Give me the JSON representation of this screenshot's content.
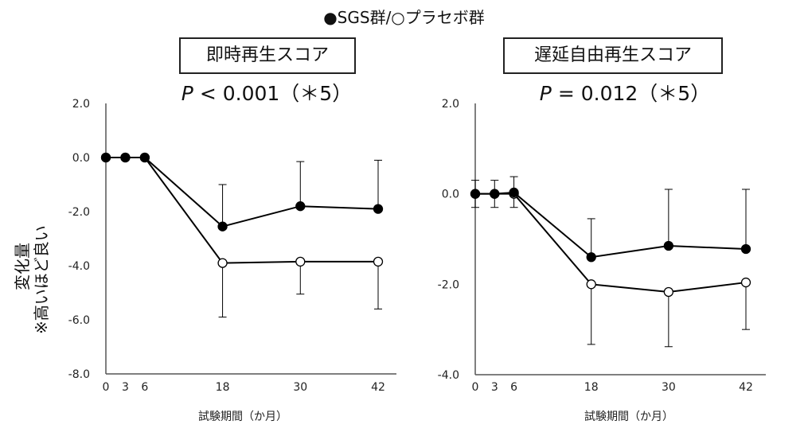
{
  "legend_title": "●SGS群/○プラセボ群",
  "y_label_line1": "変化量",
  "y_label_line2": "※高いほど良い",
  "colors": {
    "axis": "#555555",
    "line": "#000000",
    "marker_fill_sgs": "#000000",
    "marker_fill_placebo": "#ffffff"
  },
  "chart_data": [
    {
      "type": "line",
      "title": "即時再生スコア",
      "p_prefix": "P",
      "p_value_text": "< 0.001（＊5）",
      "xlabel": "試験期間（か月）",
      "x": [
        0,
        3,
        6,
        18,
        30,
        42
      ],
      "x_ticks": [
        "0",
        "3",
        "6",
        "18",
        "30",
        "42"
      ],
      "ylim": [
        -8.0,
        2.0
      ],
      "y_ticks": [
        "2.0",
        "0.0",
        "-2.0",
        "-4.0",
        "-6.0",
        "-8.0"
      ],
      "series": [
        {
          "name": "SGS群",
          "marker": "filled-circle",
          "values": [
            0,
            0,
            0,
            -2.55,
            -1.8,
            -1.9
          ],
          "error_upper": [
            0,
            0,
            0,
            -1.0,
            -0.15,
            -0.1
          ]
        },
        {
          "name": "プラセボ群",
          "marker": "open-circle",
          "values": [
            0,
            0,
            0,
            -3.9,
            -3.85,
            -3.85
          ],
          "error_lower": [
            0,
            0,
            0,
            -5.9,
            -5.05,
            -5.6
          ]
        }
      ]
    },
    {
      "type": "line",
      "title": "遅延自由再生スコア",
      "p_prefix": "P",
      "p_value_text": "= 0.012（＊5）",
      "xlabel": "試験期間（か月）",
      "x": [
        0,
        3,
        6,
        18,
        30,
        42
      ],
      "x_ticks": [
        "0",
        "3",
        "6",
        "18",
        "30",
        "42"
      ],
      "ylim": [
        -4.0,
        2.0
      ],
      "y_ticks": [
        "2.0",
        "0.0",
        "-2.0",
        "-4.0"
      ],
      "series": [
        {
          "name": "SGS群",
          "marker": "filled-circle",
          "values": [
            0,
            0,
            0.03,
            -1.4,
            -1.15,
            -1.22
          ],
          "error_upper": [
            0.3,
            0.3,
            0.38,
            -0.55,
            0.1,
            0.1
          ]
        },
        {
          "name": "プラセボ群",
          "marker": "open-circle",
          "values": [
            0,
            0,
            0,
            -2.0,
            -2.17,
            -1.96
          ],
          "error_lower": [
            -0.3,
            -0.3,
            -0.3,
            -3.33,
            -3.38,
            -3.0
          ]
        }
      ]
    }
  ]
}
